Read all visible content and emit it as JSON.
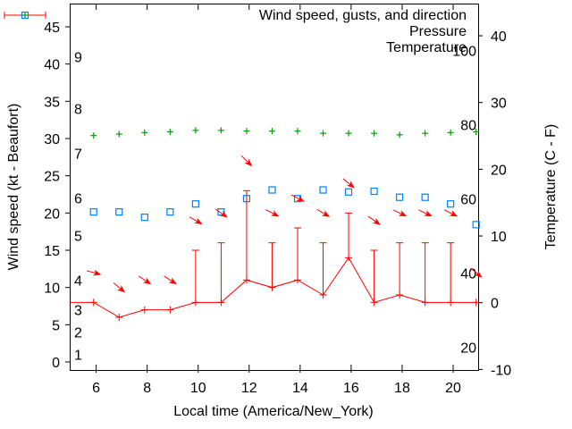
{
  "chart_data": {
    "type": "line",
    "legend": [
      {
        "label": "Wind speed, gusts, and direction",
        "marker": "errorbar-line",
        "color": "#ff0000"
      },
      {
        "label": "Pressure",
        "marker": "plus",
        "color": "#00a400"
      },
      {
        "label": "Temperature",
        "marker": "open-square",
        "color": "#0080ff"
      }
    ],
    "x_hours": [
      5.9,
      6.9,
      7.9,
      8.9,
      9.9,
      10.9,
      11.9,
      12.9,
      13.9,
      14.9,
      15.9,
      16.9,
      17.9,
      18.9,
      19.9,
      20.9
    ],
    "series": {
      "wind": {
        "name": "Wind speed, gusts, and direction",
        "speed_kt": [
          8,
          6,
          7,
          7,
          8,
          8,
          11,
          10,
          11,
          9,
          14,
          8,
          9,
          8,
          8,
          8
        ],
        "gust_kt": [
          null,
          null,
          null,
          null,
          15,
          16,
          23,
          16,
          18,
          16,
          20,
          15,
          16,
          16,
          16,
          null
        ],
        "arrow_angle_deg": [
          15,
          40,
          33,
          33,
          30,
          35,
          45,
          28,
          28,
          30,
          40,
          35,
          25,
          25,
          27,
          40
        ],
        "arrow_offset_kt": 4,
        "enters_left_edge_at_kt": 8
      },
      "pressure": {
        "name": "Pressure",
        "values_left_axis": [
          30.4,
          30.6,
          30.8,
          30.9,
          31.1,
          31.1,
          31.0,
          31.0,
          31.0,
          30.7,
          30.7,
          30.7,
          30.5,
          30.7,
          30.8,
          30.9
        ]
      },
      "temperature": {
        "name": "Temperature",
        "values_c": [
          13.6,
          13.6,
          12.8,
          13.6,
          14.8,
          13.6,
          15.6,
          16.9,
          15.6,
          16.9,
          16.6,
          16.7,
          15.8,
          15.8,
          14.8,
          11.7
        ]
      }
    },
    "axes": {
      "x": {
        "label": "Local time (America/New_York)",
        "ticks": [
          6,
          8,
          10,
          12,
          14,
          16,
          18,
          20
        ],
        "range": [
          4.96,
          20.98
        ]
      },
      "y_left": {
        "label": "Wind speed (kt - Beaufort)",
        "ticks_kt": [
          0,
          5,
          10,
          15,
          20,
          25,
          30,
          35,
          40,
          45
        ],
        "beaufort_scale": [
          {
            "label": "1",
            "kt": 1
          },
          {
            "label": "2",
            "kt": 4
          },
          {
            "label": "3",
            "kt": 7
          },
          {
            "label": "4",
            "kt": 11
          },
          {
            "label": "5",
            "kt": 17
          },
          {
            "label": "6",
            "kt": 22
          },
          {
            "label": "7",
            "kt": 28
          },
          {
            "label": "8",
            "kt": 34
          },
          {
            "label": "9",
            "kt": 41
          }
        ]
      },
      "y_right": {
        "label": "Temperature (C - F)",
        "ticks_c": [
          -10,
          0,
          10,
          20,
          30,
          40
        ],
        "fahrenheit_scale": [
          {
            "label": "20",
            "f": 20
          },
          {
            "label": "40",
            "f": 40
          },
          {
            "label": "60",
            "f": 60
          },
          {
            "label": "80",
            "f": 80
          },
          {
            "label": "100",
            "f": 100
          }
        ]
      }
    },
    "colors": {
      "wind": "#ff0000",
      "pressure": "#00a400",
      "temperature": "#0080ff",
      "frame": "#000000"
    },
    "grid": false,
    "legend_position": "top-right-inside"
  }
}
